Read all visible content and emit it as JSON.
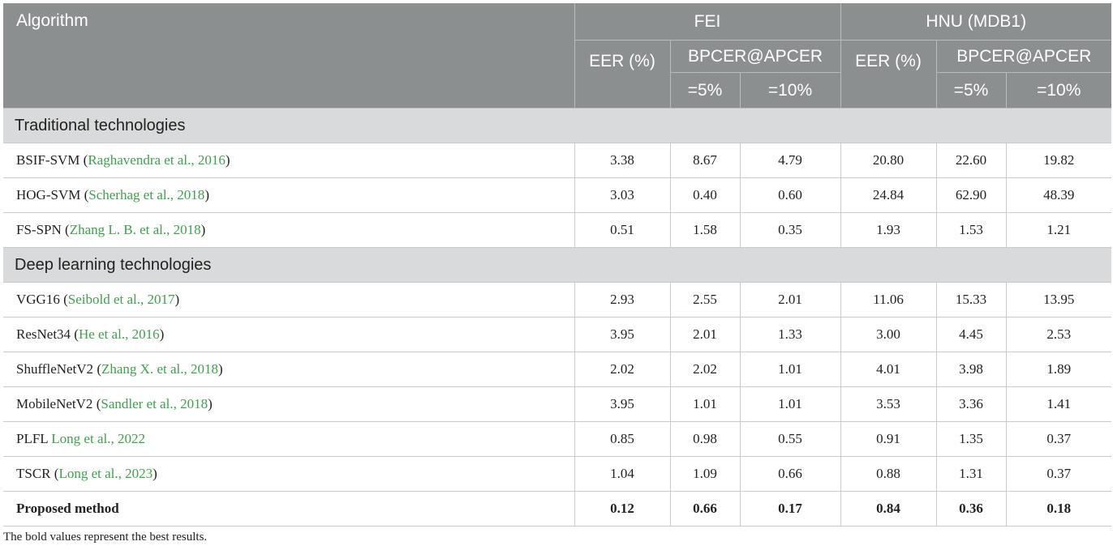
{
  "header": {
    "algorithm": "Algorithm",
    "fei": "FEI",
    "hnu": "HNU (MDB1)",
    "eer": "EER (%)",
    "bpcer": "BPCER@APCER",
    "apcer5": "=5%",
    "apcer10": "=10%"
  },
  "sections": {
    "traditional": "Traditional technologies",
    "deep": "Deep learning technologies"
  },
  "rows": [
    {
      "name": "BSIF-SVM",
      "ref": "Raghavendra et al., 2016",
      "pre": " (",
      "post": ")",
      "v": [
        "3.38",
        "8.67",
        "4.79",
        "20.80",
        "22.60",
        "19.82"
      ]
    },
    {
      "name": "HOG-SVM",
      "ref": "Scherhag et al., 2018",
      "pre": " (",
      "post": ")",
      "v": [
        "3.03",
        "0.40",
        "0.60",
        "24.84",
        "62.90",
        "48.39"
      ]
    },
    {
      "name": "FS-SPN",
      "ref": "Zhang L. B. et al., 2018",
      "pre": " (",
      "post": ")",
      "v": [
        "0.51",
        "1.58",
        "0.35",
        "1.93",
        "1.53",
        "1.21"
      ]
    },
    {
      "name": "VGG16",
      "ref": "Seibold et al., 2017",
      "pre": " (",
      "post": ")",
      "v": [
        "2.93",
        "2.55",
        "2.01",
        "11.06",
        "15.33",
        "13.95"
      ]
    },
    {
      "name": "ResNet34",
      "ref": "He et al., 2016",
      "pre": " (",
      "post": ")",
      "v": [
        "3.95",
        "2.01",
        "1.33",
        "3.00",
        "4.45",
        "2.53"
      ]
    },
    {
      "name": "ShuffleNetV2",
      "ref": "Zhang X. et al., 2018",
      "pre": " (",
      "post": ")",
      "v": [
        "2.02",
        "2.02",
        "1.01",
        "4.01",
        "3.98",
        "1.89"
      ]
    },
    {
      "name": "MobileNetV2",
      "ref": "Sandler et al., 2018",
      "pre": " (",
      "post": ")",
      "v": [
        "3.95",
        "1.01",
        "1.01",
        "3.53",
        "3.36",
        "1.41"
      ]
    },
    {
      "name": "PLFL",
      "ref": "Long et al., 2022",
      "pre": " ",
      "post": "",
      "v": [
        "0.85",
        "0.98",
        "0.55",
        "0.91",
        "1.35",
        "0.37"
      ]
    },
    {
      "name": "TSCR",
      "ref": "Long et al., 2023",
      "pre": " (",
      "post": ")",
      "v": [
        "1.04",
        "1.09",
        "0.66",
        "0.88",
        "1.31",
        "0.37"
      ]
    },
    {
      "name": "Proposed method",
      "v": [
        "0.12",
        "0.66",
        "0.17",
        "0.84",
        "0.36",
        "0.18"
      ]
    }
  ],
  "footnote": "The bold values represent the best results.",
  "colors": {
    "header_bg": "#8c8f90",
    "section_bg": "#d9dadb",
    "reference_link": "#3ea24a"
  }
}
